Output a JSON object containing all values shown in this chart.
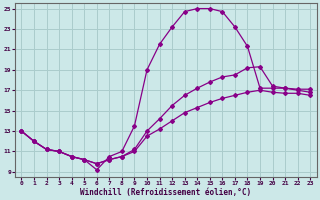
{
  "xlabel": "Windchill (Refroidissement éolien,°C)",
  "xlim": [
    -0.5,
    23.5
  ],
  "ylim": [
    8.5,
    25.5
  ],
  "yticks": [
    9,
    11,
    13,
    15,
    17,
    19,
    21,
    23,
    25
  ],
  "xticks": [
    0,
    1,
    2,
    3,
    4,
    5,
    6,
    7,
    8,
    9,
    10,
    11,
    12,
    13,
    14,
    15,
    16,
    17,
    18,
    19,
    20,
    21,
    22,
    23
  ],
  "bg_color": "#cce8e8",
  "grid_color": "#aacccc",
  "line_color": "#880088",
  "curve1_x": [
    0,
    1,
    2,
    3,
    4,
    5,
    6,
    7,
    8,
    9,
    10,
    11,
    12,
    13,
    14,
    15,
    16,
    17,
    18,
    19,
    20,
    21,
    22,
    23
  ],
  "curve1_y": [
    13.0,
    12.0,
    11.2,
    11.0,
    10.5,
    10.2,
    9.2,
    10.5,
    11.0,
    13.5,
    19.0,
    21.5,
    23.2,
    24.7,
    25.0,
    25.0,
    24.7,
    23.2,
    21.3,
    17.2,
    17.2,
    17.2,
    17.1,
    17.1
  ],
  "curve2_x": [
    0,
    1,
    2,
    3,
    4,
    5,
    6,
    7,
    8,
    9,
    10,
    11,
    12,
    13,
    14,
    15,
    16,
    17,
    18,
    19,
    20,
    21,
    22,
    23
  ],
  "curve2_y": [
    13.0,
    12.0,
    11.2,
    11.0,
    10.5,
    10.2,
    9.8,
    10.2,
    10.5,
    11.2,
    13.0,
    14.2,
    15.5,
    16.5,
    17.2,
    17.8,
    18.3,
    18.5,
    19.2,
    19.3,
    17.4,
    17.2,
    17.0,
    16.8
  ],
  "curve3_x": [
    0,
    1,
    2,
    3,
    4,
    5,
    6,
    7,
    8,
    9,
    10,
    11,
    12,
    13,
    14,
    15,
    16,
    17,
    18,
    19,
    20,
    21,
    22,
    23
  ],
  "curve3_y": [
    13.0,
    12.0,
    11.2,
    11.0,
    10.5,
    10.2,
    9.8,
    10.2,
    10.5,
    11.0,
    12.5,
    13.2,
    14.0,
    14.8,
    15.3,
    15.8,
    16.2,
    16.5,
    16.8,
    17.0,
    16.8,
    16.7,
    16.7,
    16.5
  ]
}
